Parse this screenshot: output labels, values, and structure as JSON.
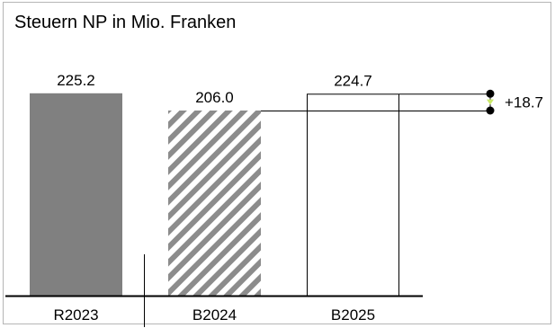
{
  "chart_data": {
    "type": "bar",
    "title": "Steuern NP in Mio. Franken",
    "xlabel": "",
    "ylabel": "",
    "categories": [
      "R2023",
      "B2024",
      "B2025"
    ],
    "values": [
      225.2,
      206.0,
      224.7
    ],
    "value_labels": [
      "225.2",
      "206.0",
      "224.7"
    ],
    "bar_styles": [
      "solid",
      "hatched",
      "outline"
    ],
    "ylim": [
      0,
      250
    ],
    "grid": false,
    "legend": "none",
    "difference": {
      "from": "B2024",
      "to": "B2025",
      "label": "+18.7"
    },
    "colors": {
      "solid": "#808080",
      "hatch": "#8c8c8c",
      "axis": "#000000",
      "marker_accent": "#c9e86a"
    }
  }
}
